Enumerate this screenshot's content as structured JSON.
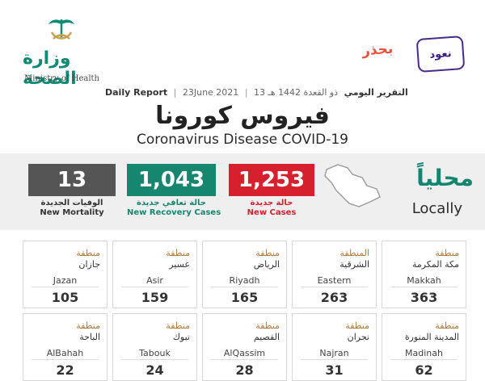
{
  "header": {
    "moh_name_ar": "وزارة الصحة",
    "moh_name_en": "Ministry of Health",
    "campaign_word1": "نعود",
    "campaign_word2": "بحذر",
    "report_en": "Daily Report",
    "report_date_en": "23June 2021",
    "report_date_hijri": "13 ذو القعدة 1442 هـ",
    "report_ar": "التقرير اليومي",
    "title_ar": "فيروس كورونا",
    "title_en": "Coronavirus Disease COVID-19"
  },
  "locally": {
    "ar": "محلياً",
    "en": "Locally"
  },
  "stats": [
    {
      "value": "13",
      "label_ar": "الوفيات الجديدة",
      "label_en": "New Mortality",
      "color": "#555555"
    },
    {
      "value": "1,043",
      "label_ar": "حالة تعافي جديدة",
      "label_en": "New Recovery Cases",
      "color": "#16876e"
    },
    {
      "value": "1,253",
      "label_ar": "حالة جديدة",
      "label_en": "New Cases",
      "color": "#d6202d"
    }
  ],
  "regions": [
    {
      "ar1": "منطقة",
      "ar2": "جازان",
      "en": "Jazan",
      "value": "105"
    },
    {
      "ar1": "منطقة",
      "ar2": "عسير",
      "en": "Asir",
      "value": "159"
    },
    {
      "ar1": "منطقة",
      "ar2": "الرياض",
      "en": "Riyadh",
      "value": "165"
    },
    {
      "ar1": "المنطقة",
      "ar2": "الشرقية",
      "en": "Eastern",
      "value": "263"
    },
    {
      "ar1": "منطقة",
      "ar2": "مكة المكرمة",
      "en": "Makkah",
      "value": "363"
    },
    {
      "ar1": "منطقة",
      "ar2": "الباحة",
      "en": "AlBahah",
      "value": "22"
    },
    {
      "ar1": "منطقة",
      "ar2": "تبوك",
      "en": "Tabouk",
      "value": "24"
    },
    {
      "ar1": "منطقة",
      "ar2": "القصيم",
      "en": "AlQassim",
      "value": "28"
    },
    {
      "ar1": "منطقة",
      "ar2": "نجران",
      "en": "Najran",
      "value": "31"
    },
    {
      "ar1": "منطقة",
      "ar2": "المدينة المنورة",
      "en": "Madinah",
      "value": "62"
    }
  ]
}
